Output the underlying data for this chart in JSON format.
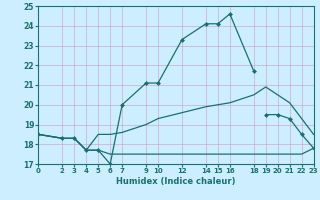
{
  "xlabel": "Humidex (Indice chaleur)",
  "background_color": "#cceeff",
  "grid_color": "#cc99cc",
  "line_color": "#1a7070",
  "xlim": [
    0,
    23
  ],
  "ylim": [
    17,
    25
  ],
  "xticks": [
    0,
    2,
    3,
    4,
    5,
    6,
    7,
    9,
    10,
    12,
    14,
    15,
    16,
    18,
    19,
    20,
    21,
    22,
    23
  ],
  "yticks": [
    17,
    18,
    19,
    20,
    21,
    22,
    23,
    24,
    25
  ],
  "line1_x": [
    0,
    2,
    3,
    4,
    5,
    6,
    7,
    9,
    10,
    12,
    14,
    15,
    16,
    18
  ],
  "line1_y": [
    18.5,
    18.3,
    18.3,
    17.7,
    17.7,
    17.0,
    20.0,
    21.1,
    21.1,
    23.3,
    24.1,
    24.1,
    24.6,
    21.7
  ],
  "line2_x": [
    0,
    2,
    3,
    4,
    5,
    6,
    7,
    9,
    10,
    12,
    14,
    15,
    16,
    18,
    19,
    20,
    21,
    22,
    23
  ],
  "line2_y": [
    18.5,
    18.3,
    18.3,
    17.7,
    17.7,
    17.5,
    17.5,
    17.5,
    17.5,
    17.5,
    17.5,
    17.5,
    17.5,
    17.5,
    17.5,
    17.5,
    17.5,
    17.5,
    17.8
  ],
  "line3_x": [
    0,
    2,
    3,
    4,
    5,
    6,
    7,
    9,
    10,
    12,
    14,
    15,
    16,
    18,
    19,
    20,
    21,
    22,
    23
  ],
  "line3_y": [
    18.5,
    18.3,
    18.3,
    17.7,
    18.5,
    18.5,
    18.6,
    19.0,
    19.3,
    19.6,
    19.9,
    20.0,
    20.1,
    20.5,
    20.9,
    20.5,
    20.1,
    19.3,
    18.5
  ],
  "line4_x": [
    19,
    20,
    21,
    22,
    23
  ],
  "line4_y": [
    19.5,
    19.5,
    19.3,
    18.5,
    17.8
  ]
}
